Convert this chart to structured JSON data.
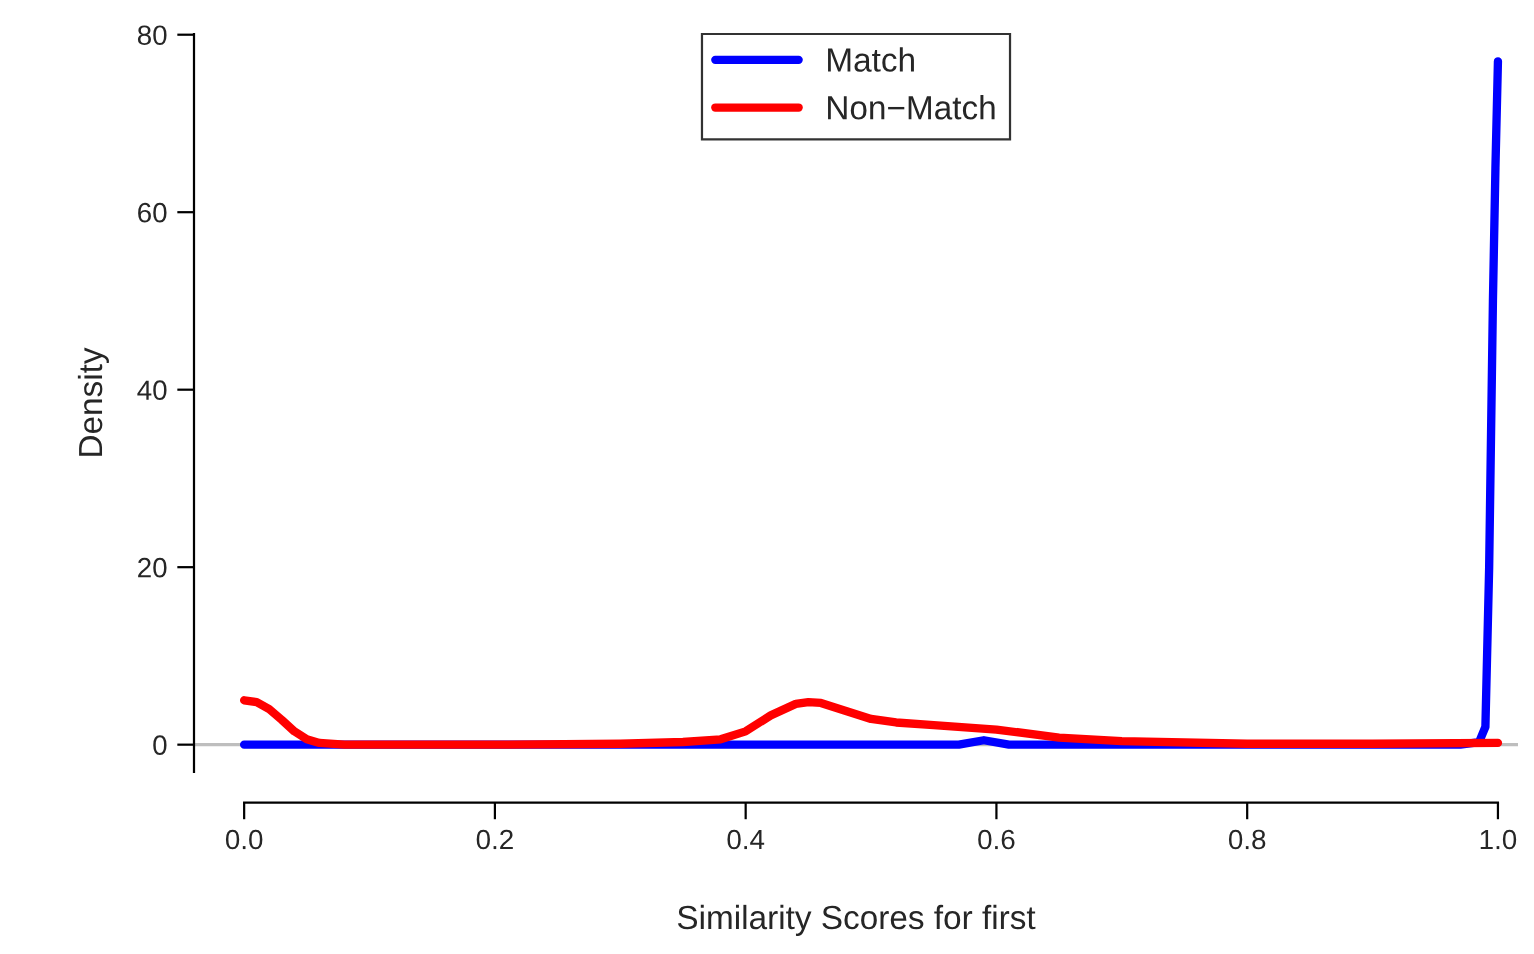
{
  "chart_data": {
    "type": "line",
    "xlabel": "Similarity Scores for first",
    "ylabel": "Density",
    "xlim": [
      -0.04,
      1.016
    ],
    "ylim": [
      -3.08,
      80.08
    ],
    "xticks": [
      {
        "value": 0,
        "label": "0.0"
      },
      {
        "value": 0.2,
        "label": "0.2"
      },
      {
        "value": 0.4,
        "label": "0.4"
      },
      {
        "value": 0.6,
        "label": "0.6"
      },
      {
        "value": 0.8,
        "label": "0.8"
      },
      {
        "value": 1,
        "label": "1.0"
      }
    ],
    "yticks": [
      0,
      20,
      40,
      60,
      80
    ],
    "grid": false,
    "legend": "top",
    "ref_lines": [
      {
        "axis": "y",
        "value": 0,
        "color": "#bebebe"
      }
    ],
    "series": [
      {
        "name": "Match",
        "color": "#0000ff",
        "x": [
          0,
          0.1,
          0.2,
          0.3,
          0.4,
          0.5,
          0.57,
          0.59,
          0.61,
          0.7,
          0.8,
          0.9,
          0.97,
          0.985,
          0.99,
          0.993,
          0.996,
          0.998,
          1.0
        ],
        "values": [
          0,
          0,
          0,
          0,
          0,
          0,
          0,
          0.5,
          0,
          0,
          0,
          0,
          0,
          0.3,
          2,
          20,
          50,
          65,
          77
        ]
      },
      {
        "name": "Non−Match",
        "color": "#ff0000",
        "x": [
          0,
          0.01,
          0.02,
          0.03,
          0.04,
          0.05,
          0.06,
          0.08,
          0.1,
          0.2,
          0.3,
          0.35,
          0.38,
          0.4,
          0.42,
          0.44,
          0.45,
          0.46,
          0.48,
          0.5,
          0.52,
          0.55,
          0.6,
          0.65,
          0.7,
          0.8,
          0.9,
          1.0
        ],
        "values": [
          5,
          4.8,
          4,
          2.8,
          1.5,
          0.6,
          0.2,
          0,
          0,
          0,
          0.1,
          0.3,
          0.6,
          1.5,
          3.3,
          4.6,
          4.8,
          4.7,
          3.8,
          2.9,
          2.5,
          2.2,
          1.7,
          0.8,
          0.4,
          0.1,
          0.1,
          0.2
        ]
      }
    ]
  }
}
